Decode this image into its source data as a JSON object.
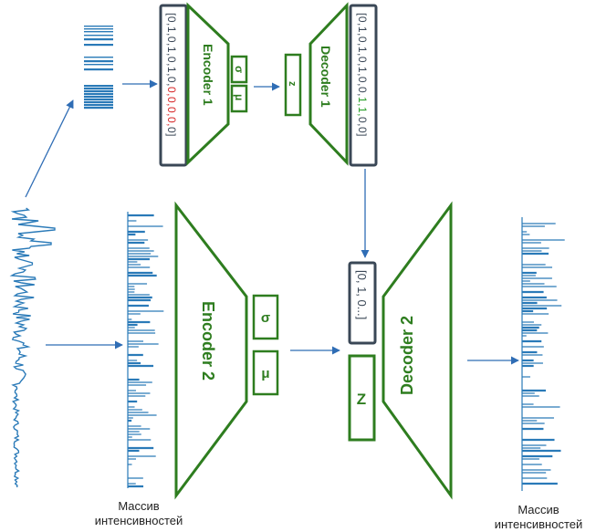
{
  "colors": {
    "green": "#2e7d1f",
    "navy": "#3a4756",
    "blue": "#2f6db5",
    "red": "#d62728",
    "bright_green": "#2ca02c",
    "spectrum": "#2a7ab8"
  },
  "top_vector_left": [
    "[0,",
    "1,",
    "0,",
    "1,",
    "0,",
    "1,",
    "0,",
    "0,",
    "0,",
    "0,",
    "0,",
    "0]"
  ],
  "top_vector_right": [
    "[0,",
    "1,",
    "0,",
    "1,",
    "0,",
    "1,",
    "0,",
    "0,",
    "1,",
    "1,",
    "0,",
    "0]"
  ],
  "labels": {
    "encoder1": "Encoder 1",
    "decoder1": "Decoder 1",
    "encoder2": "Encoder 2",
    "decoder2": "Decoder 2",
    "sigma": "σ",
    "mu": "μ",
    "z_small": "z",
    "z_big": "Z",
    "merged_vector": "[0, 1, 0...]"
  },
  "captions": {
    "left": [
      "Массив",
      "интенсивностей"
    ],
    "right": [
      "Массив",
      "интенсивностей"
    ]
  }
}
